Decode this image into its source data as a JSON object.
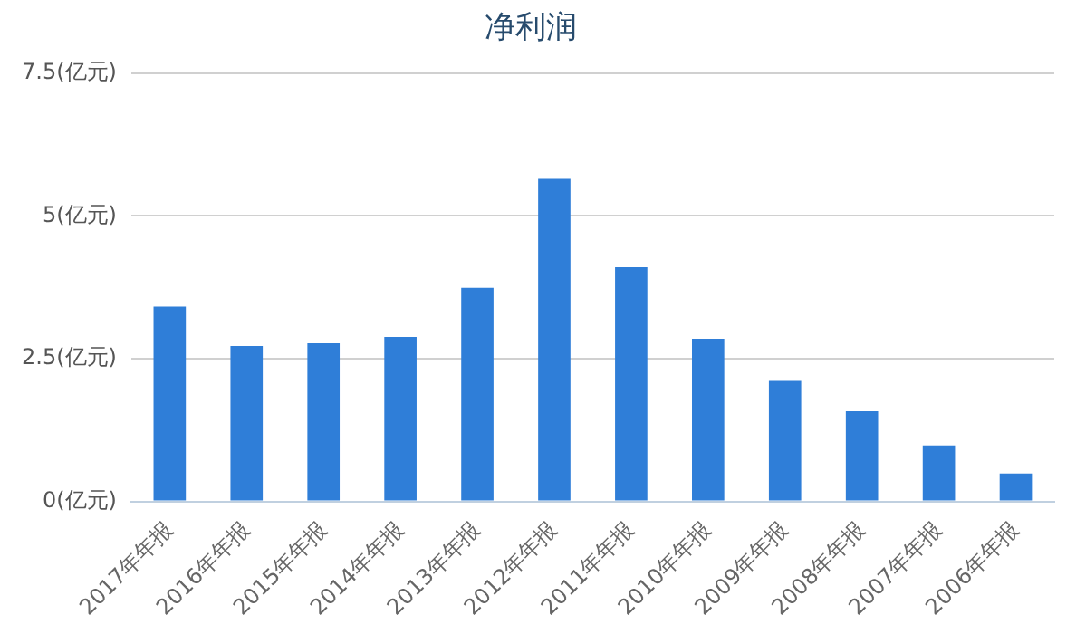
{
  "chart_data": {
    "type": "bar",
    "title": "净利润",
    "categories": [
      "2017年年报",
      "2016年年报",
      "2015年年报",
      "2014年年报",
      "2013年年报",
      "2012年年报",
      "2011年年报",
      "2010年年报",
      "2009年年报",
      "2008年年报",
      "2007年年报",
      "2006年年报"
    ],
    "values": [
      3.41,
      2.72,
      2.77,
      2.88,
      3.74,
      5.65,
      4.1,
      2.85,
      2.11,
      1.58,
      0.98,
      0.49
    ],
    "color": "#2f7ed8",
    "ylim": [
      0,
      7.5
    ],
    "yticks": [
      {
        "value": 0,
        "label": "0(亿元)"
      },
      {
        "value": 2.5,
        "label": "2.5(亿元)"
      },
      {
        "value": 5,
        "label": "5(亿元)"
      },
      {
        "value": 7.5,
        "label": "7.5(亿元)"
      }
    ],
    "grid": "y",
    "legend": false
  }
}
